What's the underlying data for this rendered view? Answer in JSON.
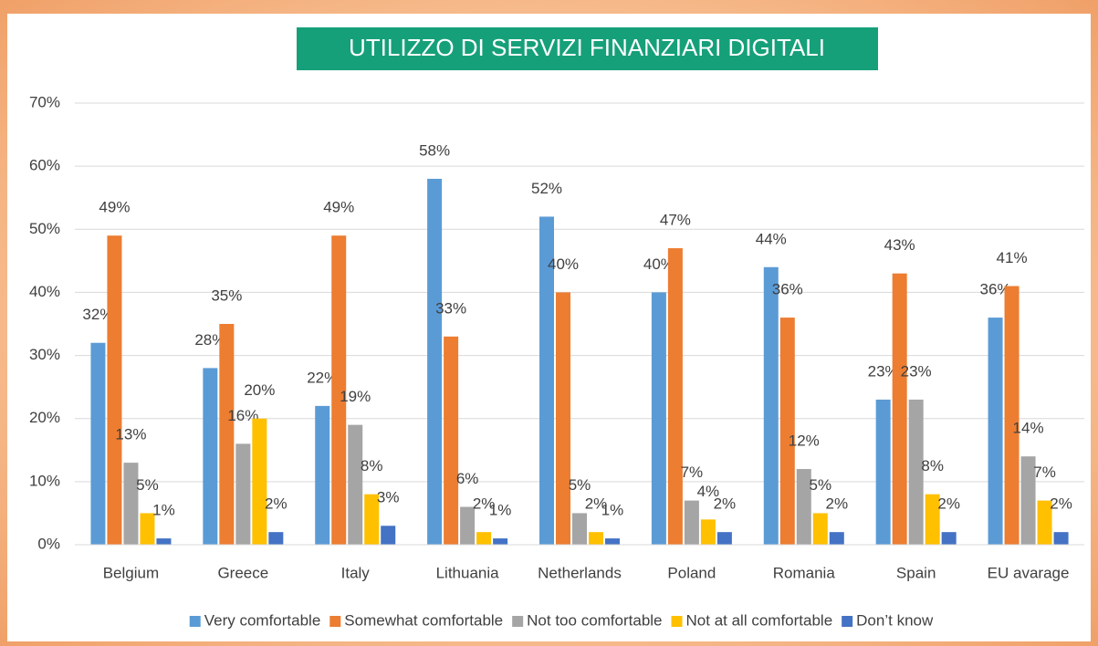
{
  "chart_data": {
    "type": "bar",
    "title": "UTILIZZO DI SERVIZI FINANZIARI DIGITALI",
    "categories": [
      "Belgium",
      "Greece",
      "Italy",
      "Lithuania",
      "Netherlands",
      "Poland",
      "Romania",
      "Spain",
      "EU avarage"
    ],
    "series": [
      {
        "name": "Very comfortable",
        "color": "#5b9bd5",
        "values": [
          32,
          28,
          22,
          58,
          52,
          40,
          44,
          23,
          36
        ],
        "value_labels": [
          "32%",
          "28%",
          "22%",
          "58%",
          "52%",
          "40%",
          "44%",
          "23%",
          "36%"
        ]
      },
      {
        "name": "Somewhat comfortable",
        "color": "#ed7d31",
        "values": [
          49,
          35,
          49,
          33,
          40,
          47,
          36,
          43,
          41
        ],
        "value_labels": [
          "49%",
          "35%",
          "49%",
          "33%",
          "40%",
          "47%",
          "36%",
          "43%",
          "41%"
        ]
      },
      {
        "name": "Not too comfortable",
        "color": "#a5a5a5",
        "values": [
          13,
          16,
          19,
          6,
          5,
          7,
          12,
          23,
          14
        ],
        "value_labels": [
          "13%",
          "16%",
          "19%",
          "6%",
          "5%",
          "7%",
          "12%",
          "23%",
          "14%"
        ]
      },
      {
        "name": "Not at all comfortable",
        "color": "#ffc000",
        "values": [
          5,
          20,
          8,
          2,
          2,
          4,
          5,
          8,
          7
        ],
        "value_labels": [
          "5%",
          "20%",
          "8%",
          "2%",
          "2%",
          "4%",
          "5%",
          "8%",
          "7%"
        ]
      },
      {
        "name": "Don’t know",
        "color": "#4472c4",
        "values": [
          1,
          2,
          3,
          1,
          1,
          2,
          2,
          2,
          2
        ],
        "value_labels": [
          "1%",
          "2%",
          "3%",
          "1%",
          "1%",
          "2%",
          "2%",
          "2%",
          "2%"
        ]
      }
    ],
    "ylim": [
      0,
      70
    ],
    "yticks": [
      {
        "value": 0,
        "label": "0%"
      },
      {
        "value": 10,
        "label": "10%"
      },
      {
        "value": 20,
        "label": "20%"
      },
      {
        "value": 30,
        "label": "30%"
      },
      {
        "value": 40,
        "label": "40%"
      },
      {
        "value": 50,
        "label": "50%"
      },
      {
        "value": 60,
        "label": "60%"
      },
      {
        "value": 70,
        "label": "70%"
      }
    ],
    "grid": true,
    "legend": "bottom"
  }
}
